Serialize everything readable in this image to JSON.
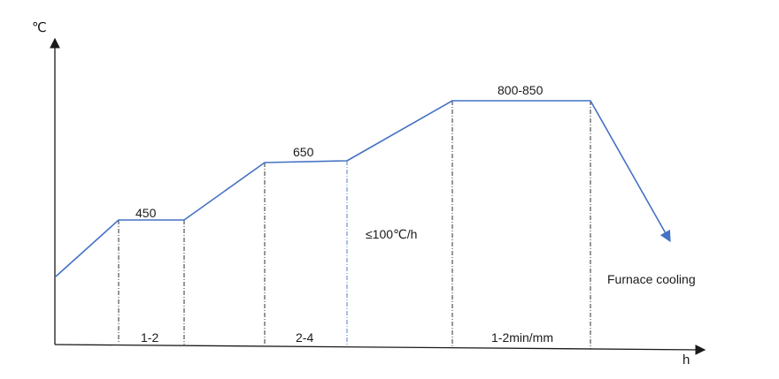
{
  "axes": {
    "y_unit": "℃",
    "x_unit": "h"
  },
  "hold_labels": {
    "t450": "450",
    "t650": "650",
    "t800": "800-850"
  },
  "duration_labels": {
    "d1": "1-2",
    "d2": "2-4",
    "d3": "1-2min/mm"
  },
  "annotations": {
    "heating_rate": "≤100℃/h",
    "cooling": "Furnace cooling"
  },
  "colors": {
    "curve": "#4472c4",
    "axis": "#1a1a1a"
  }
}
